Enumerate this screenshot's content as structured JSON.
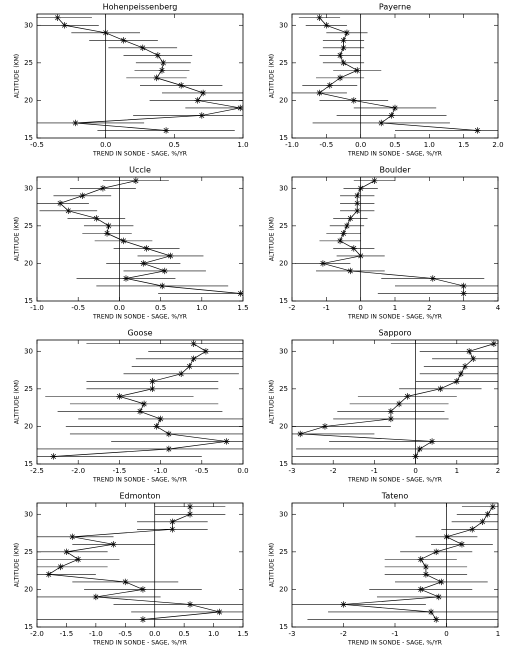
{
  "chart_data": [
    {
      "type": "line",
      "title": "Hohenpeissenberg",
      "x_label": "TREND IN SONDE - SAGE, %/YR",
      "y_label": "ALTITUDE (KM)",
      "xlim": [
        -0.5,
        1.0
      ],
      "xticks": [
        -0.5,
        {
          "value": 0,
          "label": "0.0"
        },
        0.5,
        {
          "value": 1,
          "label": "1.0"
        }
      ],
      "ylim": [
        15,
        31.5
      ],
      "yticks": [
        15,
        20,
        25,
        30
      ],
      "y": [
        31,
        30,
        29,
        28,
        27,
        26,
        25,
        24,
        23,
        22,
        21,
        20,
        19,
        18,
        17,
        16
      ],
      "x": [
        -0.35,
        -0.3,
        0.0,
        0.13,
        0.27,
        0.38,
        0.42,
        0.41,
        0.37,
        0.55,
        0.71,
        0.67,
        0.98,
        0.7,
        -0.22,
        0.44
      ],
      "xerr": [
        0.25,
        0.25,
        0.25,
        0.25,
        0.25,
        0.25,
        0.2,
        0.2,
        0.22,
        0.3,
        0.3,
        0.35,
        0.4,
        0.5,
        0.5,
        0.5
      ]
    },
    {
      "type": "line",
      "title": "Payerne",
      "x_label": "TREND IN SONDE - SAGE, %/YR",
      "y_label": "ALTITUDE (KM)",
      "xlim": [
        -1,
        2
      ],
      "xticks": [
        {
          "value": -1,
          "label": "-1.0"
        },
        -0.5,
        {
          "value": 0,
          "label": "0.0"
        },
        0.5,
        {
          "value": 1,
          "label": "1.0"
        },
        1.5,
        {
          "value": 2,
          "label": "2.0"
        }
      ],
      "ylim": [
        15,
        31.5
      ],
      "yticks": [
        15,
        20,
        25,
        30
      ],
      "y": [
        31,
        30,
        29,
        28,
        27,
        26,
        25,
        24,
        23,
        22,
        21,
        20,
        19,
        18,
        17,
        16
      ],
      "x": [
        -0.6,
        -0.5,
        -0.2,
        -0.25,
        -0.25,
        -0.3,
        -0.25,
        -0.05,
        -0.3,
        -0.45,
        -0.6,
        -0.1,
        0.5,
        0.45,
        0.3,
        1.7
      ],
      "xerr": [
        0.3,
        0.3,
        0.3,
        0.3,
        0.3,
        0.3,
        0.3,
        0.35,
        0.35,
        0.4,
        0.4,
        0.5,
        0.6,
        0.8,
        1.0,
        1.2
      ]
    },
    {
      "type": "line",
      "title": "Uccle",
      "x_label": "TREND IN SONDE - SAGE, %/YR",
      "y_label": "ALTITUDE (KM)",
      "xlim": [
        -1,
        1.5
      ],
      "xticks": [
        {
          "value": -1,
          "label": "-1.0"
        },
        -0.5,
        {
          "value": 0,
          "label": "0.0"
        },
        0.5,
        {
          "value": 1,
          "label": "1.0"
        },
        1.5
      ],
      "ylim": [
        15,
        31.5
      ],
      "yticks": [
        15,
        20,
        25,
        30
      ],
      "y": [
        31,
        30,
        29,
        28,
        27,
        26,
        25,
        24,
        23,
        22,
        21,
        20,
        19,
        18,
        17,
        16
      ],
      "x": [
        0.2,
        -0.2,
        -0.45,
        -0.72,
        -0.62,
        -0.28,
        -0.13,
        -0.15,
        0.05,
        0.33,
        0.62,
        0.29,
        0.55,
        0.08,
        0.52,
        1.47
      ],
      "xerr": [
        0.4,
        0.4,
        0.35,
        0.35,
        0.35,
        0.35,
        0.3,
        0.3,
        0.35,
        0.4,
        0.4,
        0.45,
        0.5,
        0.6,
        0.8,
        1.0
      ]
    },
    {
      "type": "line",
      "title": "Boulder",
      "x_label": "TREND IN SONDE - SAGE, %/YR",
      "y_label": "ALTITUDE (KM)",
      "xlim": [
        -2,
        4
      ],
      "xticks": [
        -2,
        -1,
        0,
        1,
        2,
        3,
        4
      ],
      "ylim": [
        15,
        31.5
      ],
      "yticks": [
        15,
        20,
        25,
        30
      ],
      "y": [
        31,
        30,
        29,
        28,
        27,
        26,
        25,
        24,
        23,
        22,
        21,
        20,
        19,
        18,
        17,
        16
      ],
      "x": [
        0.4,
        0.0,
        -0.1,
        -0.1,
        -0.1,
        -0.3,
        -0.4,
        -0.5,
        -0.6,
        -0.2,
        0.0,
        -1.1,
        -0.3,
        2.1,
        3.0,
        3.0
      ],
      "xerr": [
        0.6,
        0.5,
        0.5,
        0.5,
        0.5,
        0.5,
        0.5,
        0.5,
        0.6,
        0.6,
        0.7,
        0.8,
        1.0,
        1.5,
        2.0,
        2.5
      ]
    },
    {
      "type": "line",
      "title": "Goose",
      "x_label": "TREND IN SONDE - SAGE, %/YR",
      "y_label": "ALTITUDE (KM)",
      "xlim": [
        -2.5,
        0
      ],
      "xticks": [
        -2.5,
        {
          "value": -2,
          "label": "-2.0"
        },
        -1.5,
        {
          "value": -1,
          "label": "-1.0"
        },
        -0.5,
        {
          "value": 0,
          "label": "0.0"
        }
      ],
      "ylim": [
        15,
        31.5
      ],
      "yticks": [
        15,
        20,
        25,
        30
      ],
      "y": [
        31,
        30,
        29,
        28,
        27,
        26,
        25,
        24,
        23,
        22,
        21,
        20,
        19,
        18,
        17,
        16
      ],
      "x": [
        -0.6,
        -0.45,
        -0.6,
        -0.65,
        -0.75,
        -1.1,
        -1.1,
        -1.5,
        -1.2,
        -1.25,
        -1.0,
        -1.05,
        -0.9,
        -0.2,
        -0.9,
        -2.3
      ],
      "xerr": [
        1.3,
        0.7,
        0.7,
        0.7,
        0.7,
        0.8,
        0.8,
        0.9,
        0.9,
        1.0,
        1.0,
        1.1,
        1.2,
        1.4,
        1.6,
        1.8
      ]
    },
    {
      "type": "line",
      "title": "Sapporo",
      "x_label": "TREND IN SONDE - SAGE, %/YR",
      "y_label": "ALTITUDE (KM)",
      "xlim": [
        -3,
        2
      ],
      "xticks": [
        -3,
        -2,
        -1,
        0,
        1,
        2
      ],
      "ylim": [
        15,
        31.5
      ],
      "yticks": [
        15,
        20,
        25,
        30
      ],
      "y": [
        31,
        30,
        29,
        28,
        27,
        26,
        25,
        24,
        23,
        22,
        21,
        20,
        19,
        18,
        17,
        16
      ],
      "x": [
        1.9,
        1.3,
        1.4,
        1.2,
        1.1,
        1.0,
        0.6,
        -0.2,
        -0.4,
        -0.6,
        -0.6,
        -2.2,
        -2.8,
        0.4,
        0.1,
        0.0
      ],
      "xerr": [
        2.5,
        1.2,
        1.0,
        1.0,
        1.0,
        1.0,
        1.0,
        1.2,
        1.2,
        1.3,
        1.4,
        1.6,
        1.8,
        2.5,
        3.0,
        3.0
      ]
    },
    {
      "type": "line",
      "title": "Edmonton",
      "x_label": "TREND IN SONDE - SAGE, %/YR",
      "y_label": "ALTITUDE (KM)",
      "xlim": [
        -2,
        1.5
      ],
      "xticks": [
        {
          "value": -2,
          "label": "-2.0"
        },
        -1.5,
        {
          "value": -1,
          "label": "-1.0"
        },
        -0.5,
        {
          "value": 0,
          "label": "0.0"
        },
        0.5,
        {
          "value": 1,
          "label": "1.0"
        },
        1.5
      ],
      "ylim": [
        15,
        31.5
      ],
      "yticks": [
        15,
        20,
        25,
        30
      ],
      "y": [
        31,
        30,
        29,
        28,
        27,
        26,
        25,
        24,
        23,
        22,
        21,
        20,
        19,
        18,
        17,
        16
      ],
      "x": [
        0.6,
        0.6,
        0.3,
        0.3,
        -1.4,
        -0.7,
        -1.5,
        -1.3,
        -1.6,
        -1.8,
        -0.5,
        -0.2,
        -1.0,
        0.6,
        1.1,
        -0.2
      ],
      "xerr": [
        0.6,
        0.6,
        0.6,
        0.6,
        0.7,
        0.7,
        0.7,
        0.7,
        0.8,
        0.8,
        0.9,
        1.0,
        1.1,
        1.3,
        1.5,
        1.8
      ]
    },
    {
      "type": "line",
      "title": "Tateno",
      "x_label": "TREND IN SONDE - SAGE, %/YR",
      "y_label": "ALTITUDE (KM)",
      "xlim": [
        -3,
        1
      ],
      "xticks": [
        -3,
        -2,
        -1,
        0,
        1
      ],
      "ylim": [
        15,
        31.5
      ],
      "yticks": [
        15,
        20,
        25,
        30
      ],
      "y": [
        31,
        30,
        29,
        28,
        27,
        26,
        25,
        24,
        23,
        22,
        21,
        20,
        19,
        18,
        17,
        16
      ],
      "x": [
        0.9,
        0.8,
        0.7,
        0.5,
        0.0,
        0.3,
        -0.2,
        -0.5,
        -0.4,
        -0.4,
        -0.1,
        -0.5,
        -0.15,
        -2.0,
        -0.3,
        -0.2
      ],
      "xerr": [
        0.6,
        0.6,
        0.6,
        0.6,
        0.6,
        0.6,
        0.7,
        0.7,
        0.8,
        0.8,
        0.9,
        1.0,
        1.2,
        1.6,
        2.0,
        2.5
      ]
    }
  ]
}
